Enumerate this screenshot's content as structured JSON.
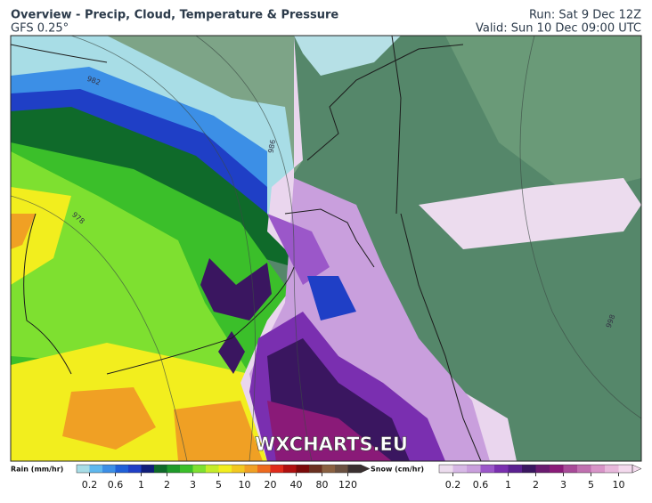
{
  "header": {
    "title": "Overview - Precip, Cloud, Temperature & Pressure",
    "model": "GFS 0.25°",
    "run": "Run: Sat 9 Dec 12Z",
    "valid": "Valid: Sun 10 Dec 09:00 UTC"
  },
  "map": {
    "watermark": "WXCHARTS.EU",
    "isobar_labels": [
      "982",
      "986",
      "978",
      "998"
    ]
  },
  "legend": {
    "rain": {
      "title": "Rain (mm/hr)",
      "ticks": [
        "0.2",
        "0.6",
        "1",
        "2",
        "3",
        "5",
        "10",
        "20",
        "40",
        "80",
        "120"
      ]
    },
    "snow": {
      "title": "Snow (cm/hr)",
      "ticks": [
        "0.2",
        "0.6",
        "1",
        "2",
        "3",
        "5",
        "10"
      ]
    }
  }
}
